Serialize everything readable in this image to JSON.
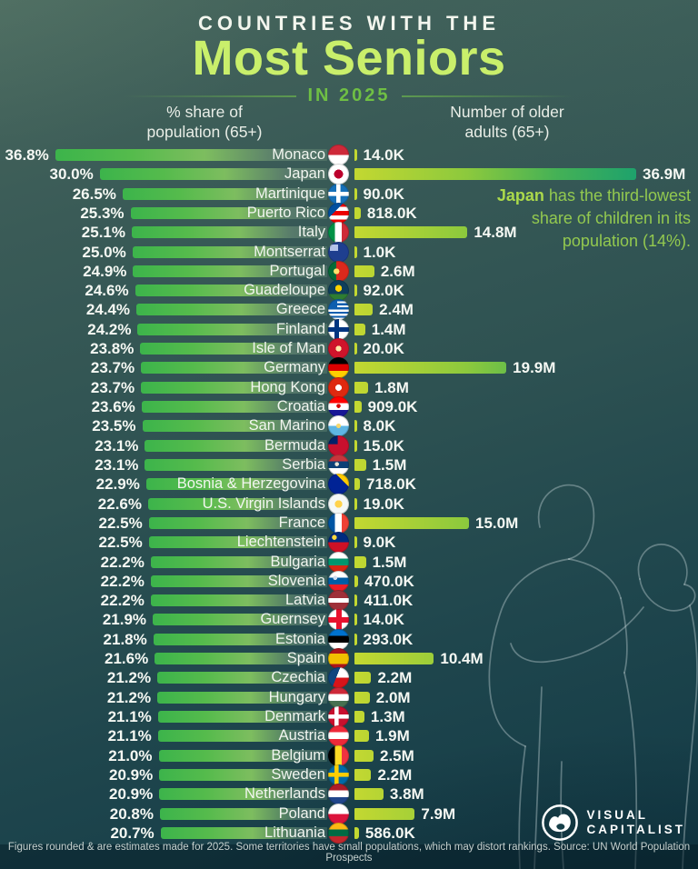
{
  "header": {
    "kicker": "COUNTRIES WITH THE",
    "title": "Most Seniors",
    "subtitle": "IN 2025"
  },
  "columns": {
    "left": {
      "line1": "% share of",
      "line2": "population (65+)"
    },
    "right": {
      "line1": "Number of older",
      "line2": "adults (65+)"
    }
  },
  "annotation": {
    "highlight": "Japan",
    "lines": [
      "Japan has the third-lowest",
      "share of children in its",
      "population (14%)."
    ]
  },
  "footer": {
    "note": "Figures rounded & are estimates made for 2025. Some territories have small populations, which may distort rankings. Source: UN World Population Prospects"
  },
  "logo": {
    "line1": "VISUAL",
    "line2": "CAPITALIST"
  },
  "colors": {
    "title_lime": "#c9ef6b",
    "subtitle_green": "#6fbf44",
    "annotation_green": "#93c94f",
    "bar_left_start": "#3cb44b",
    "bar_right_start": "#c3d831",
    "bar_right_end": "#1ea26c",
    "background_top": "#47665c",
    "background_bottom": "#123a46"
  },
  "chart_data": {
    "type": "bar",
    "orientation": "horizontal-dual",
    "left_axis": {
      "label": "% share of population (65+)",
      "unit": "%",
      "max": 36.8
    },
    "right_axis": {
      "label": "Number of older adults (65+)",
      "unit": "persons",
      "max_millions": 36.9
    },
    "rows": [
      {
        "country": "Monaco",
        "share_pct": 36.8,
        "share_label": "36.8%",
        "seniors_label": "14.0K",
        "seniors_millions": 0.014
      },
      {
        "country": "Japan",
        "share_pct": 30.0,
        "share_label": "30.0%",
        "seniors_label": "36.9M",
        "seniors_millions": 36.9
      },
      {
        "country": "Martinique",
        "share_pct": 26.5,
        "share_label": "26.5%",
        "seniors_label": "90.0K",
        "seniors_millions": 0.09
      },
      {
        "country": "Puerto Rico",
        "share_pct": 25.3,
        "share_label": "25.3%",
        "seniors_label": "818.0K",
        "seniors_millions": 0.818
      },
      {
        "country": "Italy",
        "share_pct": 25.1,
        "share_label": "25.1%",
        "seniors_label": "14.8M",
        "seniors_millions": 14.8
      },
      {
        "country": "Montserrat",
        "share_pct": 25.0,
        "share_label": "25.0%",
        "seniors_label": "1.0K",
        "seniors_millions": 0.001
      },
      {
        "country": "Portugal",
        "share_pct": 24.9,
        "share_label": "24.9%",
        "seniors_label": "2.6M",
        "seniors_millions": 2.6
      },
      {
        "country": "Guadeloupe",
        "share_pct": 24.6,
        "share_label": "24.6%",
        "seniors_label": "92.0K",
        "seniors_millions": 0.092
      },
      {
        "country": "Greece",
        "share_pct": 24.4,
        "share_label": "24.4%",
        "seniors_label": "2.4M",
        "seniors_millions": 2.4
      },
      {
        "country": "Finland",
        "share_pct": 24.2,
        "share_label": "24.2%",
        "seniors_label": "1.4M",
        "seniors_millions": 1.4
      },
      {
        "country": "Isle of Man",
        "share_pct": 23.8,
        "share_label": "23.8%",
        "seniors_label": "20.0K",
        "seniors_millions": 0.02
      },
      {
        "country": "Germany",
        "share_pct": 23.7,
        "share_label": "23.7%",
        "seniors_label": "19.9M",
        "seniors_millions": 19.9
      },
      {
        "country": "Hong Kong",
        "share_pct": 23.7,
        "share_label": "23.7%",
        "seniors_label": "1.8M",
        "seniors_millions": 1.8
      },
      {
        "country": "Croatia",
        "share_pct": 23.6,
        "share_label": "23.6%",
        "seniors_label": "909.0K",
        "seniors_millions": 0.909
      },
      {
        "country": "San Marino",
        "share_pct": 23.5,
        "share_label": "23.5%",
        "seniors_label": "8.0K",
        "seniors_millions": 0.008
      },
      {
        "country": "Bermuda",
        "share_pct": 23.1,
        "share_label": "23.1%",
        "seniors_label": "15.0K",
        "seniors_millions": 0.015
      },
      {
        "country": "Serbia",
        "share_pct": 23.1,
        "share_label": "23.1%",
        "seniors_label": "1.5M",
        "seniors_millions": 1.5
      },
      {
        "country": "Bosnia & Herzegovina",
        "share_pct": 22.9,
        "share_label": "22.9%",
        "seniors_label": "718.0K",
        "seniors_millions": 0.718
      },
      {
        "country": "U.S. Virgin Islands",
        "share_pct": 22.6,
        "share_label": "22.6%",
        "seniors_label": "19.0K",
        "seniors_millions": 0.019
      },
      {
        "country": "France",
        "share_pct": 22.5,
        "share_label": "22.5%",
        "seniors_label": "15.0M",
        "seniors_millions": 15.0
      },
      {
        "country": "Liechtenstein",
        "share_pct": 22.5,
        "share_label": "22.5%",
        "seniors_label": "9.0K",
        "seniors_millions": 0.009
      },
      {
        "country": "Bulgaria",
        "share_pct": 22.2,
        "share_label": "22.2%",
        "seniors_label": "1.5M",
        "seniors_millions": 1.5
      },
      {
        "country": "Slovenia",
        "share_pct": 22.2,
        "share_label": "22.2%",
        "seniors_label": "470.0K",
        "seniors_millions": 0.47
      },
      {
        "country": "Latvia",
        "share_pct": 22.2,
        "share_label": "22.2%",
        "seniors_label": "411.0K",
        "seniors_millions": 0.411
      },
      {
        "country": "Guernsey",
        "share_pct": 21.9,
        "share_label": "21.9%",
        "seniors_label": "14.0K",
        "seniors_millions": 0.014
      },
      {
        "country": "Estonia",
        "share_pct": 21.8,
        "share_label": "21.8%",
        "seniors_label": "293.0K",
        "seniors_millions": 0.293
      },
      {
        "country": "Spain",
        "share_pct": 21.6,
        "share_label": "21.6%",
        "seniors_label": "10.4M",
        "seniors_millions": 10.4
      },
      {
        "country": "Czechia",
        "share_pct": 21.2,
        "share_label": "21.2%",
        "seniors_label": "2.2M",
        "seniors_millions": 2.2
      },
      {
        "country": "Hungary",
        "share_pct": 21.2,
        "share_label": "21.2%",
        "seniors_label": "2.0M",
        "seniors_millions": 2.0
      },
      {
        "country": "Denmark",
        "share_pct": 21.1,
        "share_label": "21.1%",
        "seniors_label": "1.3M",
        "seniors_millions": 1.3
      },
      {
        "country": "Austria",
        "share_pct": 21.1,
        "share_label": "21.1%",
        "seniors_label": "1.9M",
        "seniors_millions": 1.9
      },
      {
        "country": "Belgium",
        "share_pct": 21.0,
        "share_label": "21.0%",
        "seniors_label": "2.5M",
        "seniors_millions": 2.5
      },
      {
        "country": "Sweden",
        "share_pct": 20.9,
        "share_label": "20.9%",
        "seniors_label": "2.2M",
        "seniors_millions": 2.2
      },
      {
        "country": "Netherlands",
        "share_pct": 20.9,
        "share_label": "20.9%",
        "seniors_label": "3.8M",
        "seniors_millions": 3.8
      },
      {
        "country": "Poland",
        "share_pct": 20.8,
        "share_label": "20.8%",
        "seniors_label": "7.9M",
        "seniors_millions": 7.9
      },
      {
        "country": "Lithuania",
        "share_pct": 20.7,
        "share_label": "20.7%",
        "seniors_label": "586.0K",
        "seniors_millions": 0.586
      }
    ]
  },
  "flags": {
    "Monaco": "linear-gradient(180deg,#ce2939 50%,#ffffff 50%)",
    "Japan": "radial-gradient(circle at 50% 50%,#bc002d 0 30%,#ffffff 31%)",
    "Martinique": "linear-gradient(#ffffff,#ffffff) 50% 50%/100% 20% no-repeat,linear-gradient(#ffffff,#ffffff) 50% 50%/20% 100% no-repeat,#1670b8",
    "Puerto Rico": "linear-gradient(135deg,#0050a0 0 38%,transparent 38%),repeating-linear-gradient(180deg,#ed0000 0 20%,#ffffff 20% 40%)",
    "Italy": "linear-gradient(90deg,#009246 33%,#ffffff 33% 66%,#ce2b37 66%)",
    "Montserrat": "linear-gradient(#b3c3e8,#b3c3e8) 18% 22%/40% 32% no-repeat,#1e3f8f",
    "Portugal": "radial-gradient(circle at 40% 50%,#ffe16b 0 17%,transparent 18%),linear-gradient(90deg,#046a38 40%,#da291c 40%)",
    "Guadeloupe": "radial-gradient(circle at 50% 40%,#ffd100 0 20%,transparent 21%),linear-gradient(180deg,#0f3f5c 68%,#2e7d32 68%)",
    "Greece": "linear-gradient(#0d5eaf,#0d5eaf) 0 0/45% 45% no-repeat,repeating-linear-gradient(180deg,#0d5eaf 0 10%,#ffffff 10% 20%)",
    "Finland": "linear-gradient(#003580,#003580) 50% 50%/100% 22% no-repeat,linear-gradient(#003580,#003580) 38% 50%/22% 100% no-repeat,#ffffff",
    "Isle of Man": "radial-gradient(circle at 50% 50%,#ffe9a8 0 19%,transparent 20%),#cf142b",
    "Germany": "linear-gradient(180deg,#000000 33%,#dd0000 33% 66%,#ffce00 66%)",
    "Hong Kong": "radial-gradient(circle at 50% 50%,#ffffff 0 21%,transparent 22%),#de2910",
    "Croatia": "radial-gradient(circle at 50% 46%,#d50000 0 13%,transparent 14%),linear-gradient(180deg,#ff0000 33%,#ffffff 33% 66%,#171796 66%)",
    "San Marino": "radial-gradient(circle at 50% 50%,#f5d76e 0 15%,transparent 16%),linear-gradient(180deg,#ffffff 50%,#5eb6e4 50%)",
    "Bermuda": "linear-gradient(#012169,#012169) 0 0/46% 42% no-repeat,#c8102e",
    "Serbia": "radial-gradient(circle at 42% 46%,#e8e3d5 0 12%,transparent 13%),linear-gradient(180deg,#c6363c 33%,#0c4076 33% 66%,#ffffff 66%)",
    "Bosnia & Herzegovina": "linear-gradient(225deg,#fecb00 0 32%,transparent 32%),#002395",
    "U.S. Virgin Islands": "radial-gradient(circle at 50% 50%,#ffd34d 0 25%,transparent 26%),#f4f8f7",
    "France": "linear-gradient(90deg,#0055a4 33%,#ffffff 33% 66%,#ef4135 66%)",
    "Liechtenstein": "radial-gradient(circle at 30% 27%,#ffd83d 0 11%,transparent 12%),linear-gradient(180deg,#002b7f 50%,#ce1126 50%)",
    "Bulgaria": "linear-gradient(180deg,#ffffff 33%,#00966e 33% 66%,#d62612 66%)",
    "Slovenia": "radial-gradient(circle at 34% 34%,#d0dcef 0 10%,transparent 11%),linear-gradient(180deg,#ffffff 33%,#005da4 33% 66%,#ed1c24 66%)",
    "Latvia": "linear-gradient(180deg,#9e3039 40%,#ffffff 40% 60%,#9e3039 60%)",
    "Guernsey": "linear-gradient(#e8112d,#e8112d) 50% 50%/100% 26% no-repeat,linear-gradient(#e8112d,#e8112d) 50% 50%/26% 100% no-repeat,#ffffff",
    "Estonia": "linear-gradient(180deg,#0072ce 33%,#000000 33% 66%,#ffffff 66%)",
    "Spain": "linear-gradient(180deg,#aa151b 25%,#f1bf00 25% 75%,#aa151b 75%)",
    "Czechia": "linear-gradient(112deg,#11457e 0 42%,transparent 42%),linear-gradient(180deg,#ffffff 50%,#d7141a 50%)",
    "Hungary": "linear-gradient(180deg,#ce2939 33%,#ffffff 33% 66%,#477050 66%)",
    "Denmark": "linear-gradient(#ffffff,#ffffff) 50% 50%/100% 20% no-repeat,linear-gradient(#ffffff,#ffffff) 40% 50%/20% 100% no-repeat,#c8102e",
    "Austria": "linear-gradient(180deg,#ed2939 33%,#ffffff 33% 66%,#ed2939 66%)",
    "Belgium": "linear-gradient(90deg,#000000 33%,#fdda24 33% 66%,#ef3340 66%)",
    "Sweden": "linear-gradient(#ffcd00,#ffcd00) 50% 50%/100% 20% no-repeat,linear-gradient(#ffcd00,#ffcd00) 40% 50%/20% 100% no-repeat,#006aa7",
    "Netherlands": "linear-gradient(180deg,#ae1c28 33%,#ffffff 33% 66%,#21468b 66%)",
    "Poland": "linear-gradient(180deg,#ffffff 50%,#dc143c 50%)",
    "Lithuania": "linear-gradient(180deg,#fdb913 33%,#006a44 33% 66%,#c1272d 66%)"
  }
}
